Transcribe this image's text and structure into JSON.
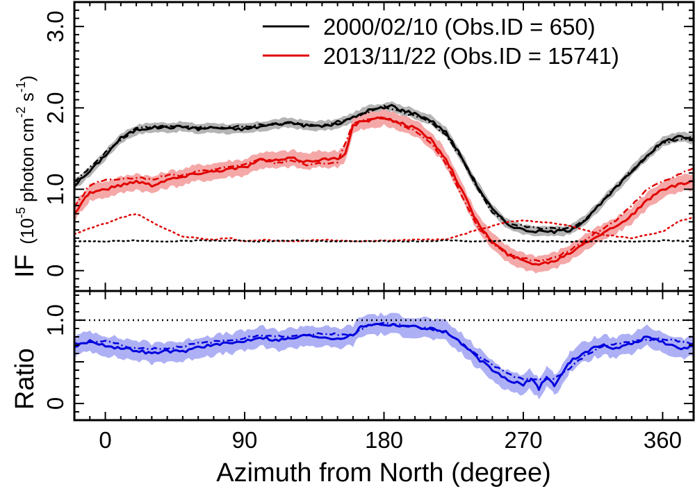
{
  "chart_data": [
    {
      "type": "line",
      "panel": "top",
      "ylabel": "IF",
      "ylabel_units": {
        "open": "(10",
        "exp1": "-5",
        "mid": " photon cm",
        "exp2": "-2",
        "space": " s",
        "exp3": "-1",
        "close": ")"
      },
      "xlim": [
        -20,
        380
      ],
      "ylim": [
        -0.25,
        3.3
      ],
      "ytick_values": [
        0,
        1,
        2,
        3
      ],
      "ytick_labels": [
        "0",
        "1.0",
        "2.0",
        "3.0"
      ],
      "legend_position": "top-right",
      "series": [
        {
          "name": "2000/02/10 (Obs.ID = 650)",
          "color": "#000000",
          "band_color": "#b4b4b4",
          "band_halfwidth": 0.06,
          "style": "solid",
          "x": [
            -20,
            -10,
            0,
            10,
            20,
            30,
            40,
            50,
            60,
            70,
            80,
            90,
            100,
            110,
            120,
            130,
            140,
            150,
            160,
            170,
            180,
            185,
            190,
            200,
            210,
            220,
            230,
            240,
            250,
            260,
            270,
            280,
            290,
            300,
            310,
            320,
            330,
            340,
            350,
            360,
            370,
            380
          ],
          "y": [
            1.05,
            1.22,
            1.42,
            1.63,
            1.73,
            1.76,
            1.76,
            1.77,
            1.74,
            1.76,
            1.74,
            1.74,
            1.77,
            1.8,
            1.82,
            1.78,
            1.78,
            1.8,
            1.88,
            1.97,
            2.0,
            2.03,
            1.98,
            1.93,
            1.85,
            1.7,
            1.4,
            1.05,
            0.75,
            0.57,
            0.5,
            0.48,
            0.48,
            0.5,
            0.62,
            0.82,
            1.02,
            1.22,
            1.42,
            1.58,
            1.65,
            1.62
          ]
        },
        {
          "name": "2013/11/22 (Obs.ID = 15741)",
          "color": "#e00000",
          "band_color": "#f5a8a8",
          "band_halfwidth": 0.1,
          "style": "solid",
          "x": [
            -20,
            -15,
            -10,
            0,
            10,
            20,
            30,
            40,
            50,
            60,
            70,
            80,
            90,
            100,
            110,
            120,
            130,
            140,
            150,
            155,
            160,
            165,
            170,
            180,
            190,
            200,
            210,
            220,
            230,
            240,
            250,
            260,
            270,
            280,
            290,
            300,
            310,
            320,
            330,
            340,
            350,
            360,
            370,
            380
          ],
          "y": [
            0.7,
            0.85,
            0.96,
            1.0,
            1.05,
            1.1,
            1.05,
            1.12,
            1.15,
            1.2,
            1.22,
            1.25,
            1.27,
            1.36,
            1.35,
            1.38,
            1.34,
            1.37,
            1.37,
            1.45,
            1.78,
            1.83,
            1.84,
            1.88,
            1.82,
            1.75,
            1.62,
            1.38,
            1.0,
            0.6,
            0.35,
            0.2,
            0.12,
            0.08,
            0.12,
            0.22,
            0.35,
            0.45,
            0.55,
            0.68,
            0.86,
            1.0,
            1.05,
            1.1
          ]
        },
        {
          "name": "",
          "color": "#e00000",
          "style": "dash-dot",
          "x": [
            -20,
            -10,
            0,
            10,
            20,
            30,
            40,
            50,
            60,
            70,
            80,
            90,
            100,
            110,
            120,
            130,
            140,
            150,
            160,
            170,
            180,
            190,
            200,
            210,
            220,
            230,
            240,
            250,
            260,
            270,
            280,
            290,
            300,
            310,
            320,
            330,
            340,
            350,
            360,
            370,
            380
          ],
          "y": [
            0.78,
            1.05,
            1.12,
            1.12,
            1.14,
            1.12,
            1.17,
            1.17,
            1.22,
            1.24,
            1.28,
            1.3,
            1.37,
            1.32,
            1.36,
            1.3,
            1.32,
            1.33,
            1.8,
            1.86,
            1.88,
            1.8,
            1.72,
            1.58,
            1.32,
            0.92,
            0.55,
            0.33,
            0.2,
            0.15,
            0.12,
            0.16,
            0.25,
            0.38,
            0.5,
            0.62,
            0.8,
            1.0,
            1.1,
            1.18,
            1.26
          ]
        },
        {
          "name": "",
          "color": "#000000",
          "style": "dash-dot",
          "x": [
            -20,
            0,
            20,
            40,
            60,
            80,
            100,
            120,
            140,
            160,
            180,
            190,
            200,
            210,
            220,
            230,
            240,
            250,
            260,
            270,
            280,
            290,
            300,
            310,
            320,
            330,
            340,
            360,
            380
          ],
          "y": [
            1.08,
            1.45,
            1.75,
            1.78,
            1.76,
            1.76,
            1.79,
            1.81,
            1.78,
            1.88,
            2.02,
            1.96,
            1.9,
            1.82,
            1.66,
            1.38,
            1.02,
            0.72,
            0.58,
            0.55,
            0.52,
            0.52,
            0.52,
            0.63,
            0.83,
            1.03,
            1.23,
            1.57,
            1.64
          ]
        },
        {
          "name": "",
          "color": "#e00000",
          "style": "dotted",
          "x": [
            -20,
            -10,
            0,
            10,
            20,
            30,
            40,
            50,
            60,
            70,
            80,
            90,
            100,
            120,
            140,
            160,
            180,
            200,
            220,
            240,
            250,
            260,
            270,
            280,
            290,
            300,
            310,
            320,
            330,
            340,
            360,
            370,
            380
          ],
          "y": [
            0.45,
            0.52,
            0.58,
            0.65,
            0.7,
            0.6,
            0.5,
            0.42,
            0.4,
            0.38,
            0.4,
            0.36,
            0.38,
            0.36,
            0.38,
            0.36,
            0.37,
            0.38,
            0.38,
            0.5,
            0.55,
            0.6,
            0.62,
            0.6,
            0.58,
            0.55,
            0.5,
            0.45,
            0.42,
            0.4,
            0.48,
            0.6,
            0.66
          ]
        },
        {
          "name": "",
          "color": "#000000",
          "style": "dotted",
          "x": [
            -20,
            0,
            20,
            40,
            60,
            80,
            100,
            120,
            140,
            160,
            180,
            200,
            220,
            240,
            260,
            280,
            300,
            320,
            340,
            360,
            380
          ],
          "y": [
            0.36,
            0.36,
            0.37,
            0.36,
            0.37,
            0.37,
            0.36,
            0.37,
            0.36,
            0.36,
            0.36,
            0.36,
            0.37,
            0.36,
            0.37,
            0.36,
            0.36,
            0.36,
            0.36,
            0.37,
            0.36
          ]
        }
      ]
    },
    {
      "type": "line",
      "panel": "bottom",
      "ylabel": "Ratio",
      "xlabel": "Azimuth from North (degree)",
      "xlim": [
        -20,
        380
      ],
      "ylim": [
        -0.2,
        1.35
      ],
      "xtick_values": [
        0,
        90,
        180,
        270,
        360
      ],
      "xtick_labels": [
        "0",
        "90",
        "180",
        "270",
        "360"
      ],
      "ytick_values": [
        0,
        0.5,
        1.0
      ],
      "ytick_labels": [
        "0",
        "",
        "1.0"
      ],
      "reference_line": {
        "y": 1.0,
        "color": "#000000",
        "style": "dotted"
      },
      "series": [
        {
          "name": "",
          "color": "#0000dd",
          "band_color": "#aeb0f5",
          "band_halfwidth": 0.12,
          "style": "solid",
          "x": [
            -20,
            -10,
            0,
            10,
            20,
            30,
            40,
            50,
            60,
            70,
            80,
            90,
            100,
            110,
            120,
            130,
            140,
            150,
            160,
            165,
            170,
            180,
            190,
            200,
            210,
            220,
            230,
            240,
            250,
            260,
            270,
            275,
            280,
            285,
            290,
            295,
            300,
            310,
            320,
            330,
            340,
            350,
            360,
            370,
            380
          ],
          "y": [
            0.68,
            0.75,
            0.7,
            0.66,
            0.64,
            0.6,
            0.63,
            0.62,
            0.68,
            0.7,
            0.72,
            0.75,
            0.8,
            0.76,
            0.78,
            0.82,
            0.8,
            0.78,
            0.82,
            0.92,
            0.95,
            0.95,
            0.94,
            0.92,
            0.9,
            0.86,
            0.72,
            0.55,
            0.4,
            0.28,
            0.22,
            0.3,
            0.18,
            0.32,
            0.22,
            0.35,
            0.5,
            0.62,
            0.7,
            0.66,
            0.72,
            0.8,
            0.74,
            0.66,
            0.68
          ]
        },
        {
          "name": "",
          "color": "#0000dd",
          "style": "dash-dot",
          "x": [
            -20,
            0,
            20,
            40,
            60,
            80,
            100,
            120,
            140,
            160,
            170,
            180,
            200,
            220,
            240,
            260,
            270,
            280,
            290,
            300,
            310,
            320,
            340,
            360,
            380
          ],
          "y": [
            0.72,
            0.75,
            0.66,
            0.66,
            0.72,
            0.76,
            0.82,
            0.8,
            0.84,
            0.82,
            0.95,
            0.96,
            0.93,
            0.86,
            0.58,
            0.35,
            0.3,
            0.28,
            0.3,
            0.42,
            0.58,
            0.68,
            0.75,
            0.78,
            0.72
          ]
        }
      ]
    }
  ],
  "legend": [
    {
      "label": "2000/02/10 (Obs.ID = 650)",
      "color": "#000000"
    },
    {
      "label": "2013/11/22 (Obs.ID = 15741)",
      "color": "#e00000"
    }
  ]
}
